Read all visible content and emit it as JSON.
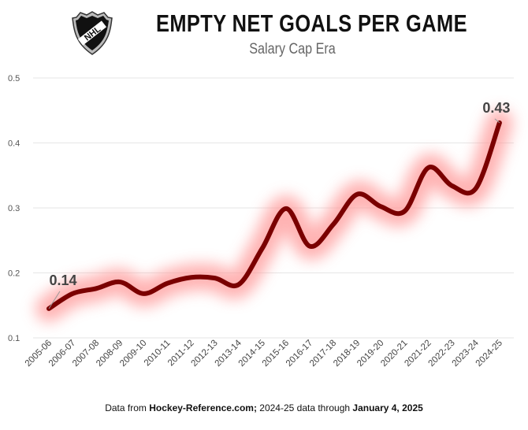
{
  "header": {
    "title": "EMPTY NET GOALS PER GAME",
    "subtitle": "Salary Cap Era",
    "logo_text": "NHL"
  },
  "footer": {
    "prefix": "Data from ",
    "source": "Hockey-Reference.com;",
    "middle": " 2024-25 data through ",
    "date": "January 4, 2025"
  },
  "colors": {
    "line": "#7a0000",
    "glow": "#ff9a9a",
    "grid": "#e6e6e6"
  },
  "chart_data": {
    "type": "line",
    "title": "EMPTY NET GOALS PER GAME",
    "subtitle": "Salary Cap Era",
    "xlabel": "",
    "ylabel": "",
    "ylim": [
      0.1,
      0.5
    ],
    "yticks": [
      "0.1",
      "0.2",
      "0.3",
      "0.4",
      "0.5"
    ],
    "grid": true,
    "categories": [
      "2005-06",
      "2006-07",
      "2007-08",
      "2008-09",
      "2009-10",
      "2010-11",
      "2011-12",
      "2012-13",
      "2013-14",
      "2014-15",
      "2015-16",
      "2016-17",
      "2017-18",
      "2018-19",
      "2019-20",
      "2020-21",
      "2021-22",
      "2022-23",
      "2023-24",
      "2024-25"
    ],
    "series": [
      {
        "name": "Empty net goals per game",
        "values": [
          0.145,
          0.168,
          0.176,
          0.186,
          0.168,
          0.184,
          0.193,
          0.192,
          0.182,
          0.238,
          0.299,
          0.241,
          0.275,
          0.321,
          0.302,
          0.295,
          0.362,
          0.334,
          0.33,
          0.431
        ]
      }
    ],
    "annotations": [
      {
        "category": "2005-06",
        "text": "0.14"
      },
      {
        "category": "2024-25",
        "text": "0.43"
      }
    ]
  }
}
